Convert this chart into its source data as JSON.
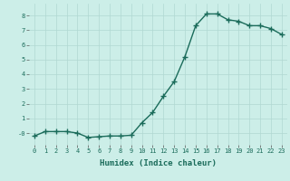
{
  "x": [
    0,
    1,
    2,
    3,
    4,
    5,
    6,
    7,
    8,
    9,
    10,
    11,
    12,
    13,
    14,
    15,
    16,
    17,
    18,
    19,
    20,
    21,
    22,
    23
  ],
  "y": [
    -0.2,
    0.1,
    0.1,
    0.1,
    0.0,
    -0.3,
    -0.25,
    -0.2,
    -0.2,
    -0.15,
    0.7,
    1.4,
    2.5,
    3.5,
    5.2,
    7.3,
    8.1,
    8.1,
    7.7,
    7.6,
    7.3,
    7.3,
    7.1,
    6.7
  ],
  "line_color": "#1a6b5a",
  "marker": "D",
  "marker_size": 2.0,
  "xlabel": "Humidex (Indice chaleur)",
  "ylim": [
    -0.8,
    8.8
  ],
  "xlim": [
    -0.5,
    23.5
  ],
  "yticks": [
    0,
    1,
    2,
    3,
    4,
    5,
    6,
    7,
    8
  ],
  "xticks": [
    0,
    1,
    2,
    3,
    4,
    5,
    6,
    7,
    8,
    9,
    10,
    11,
    12,
    13,
    14,
    15,
    16,
    17,
    18,
    19,
    20,
    21,
    22,
    23
  ],
  "xtick_labels": [
    "0",
    "1",
    "2",
    "3",
    "4",
    "5",
    "6",
    "7",
    "8",
    "9",
    "10",
    "11",
    "12",
    "13",
    "14",
    "15",
    "16",
    "17",
    "18",
    "19",
    "20",
    "21",
    "22",
    "23"
  ],
  "ytick_labels": [
    "-0",
    "1",
    "2",
    "3",
    "4",
    "5",
    "6",
    "7",
    "8"
  ],
  "bg_color": "#cceee8",
  "grid_color": "#b0d8d2",
  "line_width": 1.0,
  "tick_fontsize": 5.0,
  "xlabel_fontsize": 6.5,
  "xlabel_fontweight": "bold"
}
